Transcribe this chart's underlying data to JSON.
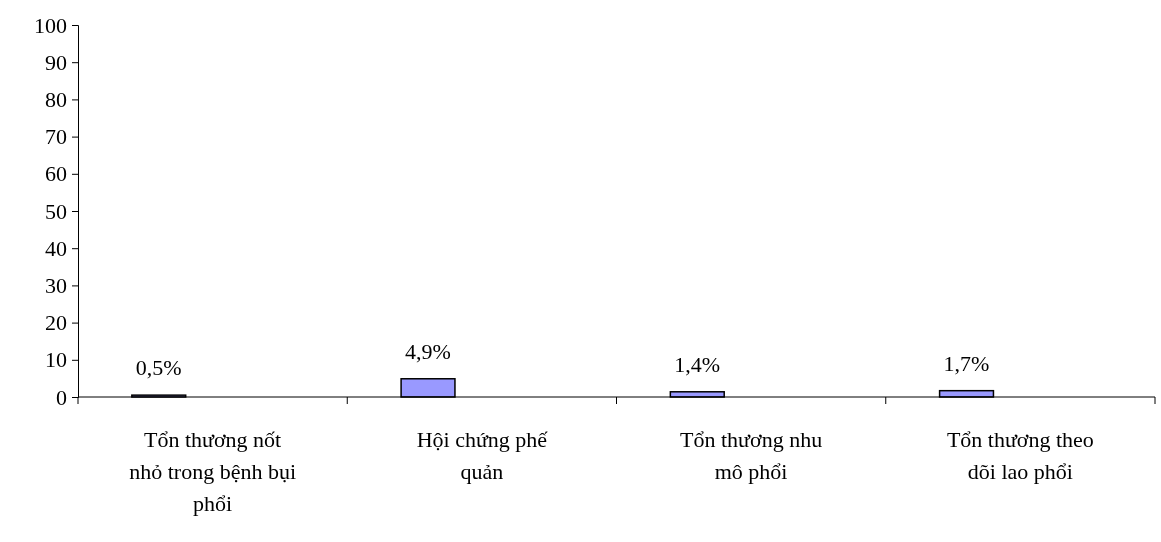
{
  "chart_data": {
    "type": "bar",
    "categories": [
      "Tổn thương nốt nhỏ trong bệnh bụi phổi",
      "Hội chứng phế quản",
      "Tổn thương nhu mô phổi",
      "Tổn thương theo dõi lao phổi"
    ],
    "values": [
      0.5,
      4.9,
      1.4,
      1.7
    ],
    "value_labels": [
      "0,5%",
      "4,9%",
      "1,4%",
      "1,7%"
    ],
    "color": "#9999ff",
    "ylim": [
      0,
      100
    ],
    "yticks": [
      0,
      10,
      20,
      30,
      40,
      50,
      60,
      70,
      80,
      90,
      100
    ],
    "grid": false
  }
}
